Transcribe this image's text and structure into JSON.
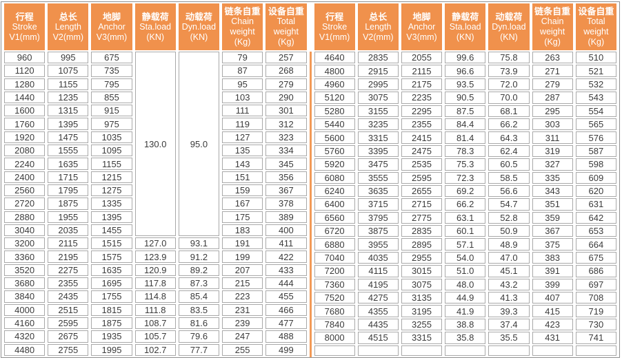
{
  "colors": {
    "header_bg": "#F0914C",
    "header_text": "#FFFFFF",
    "divider": "#F29A57",
    "cell_border": "#A8A8A8",
    "outer_border": "#8E8E8E",
    "cell_text": "#3A3A3A"
  },
  "columns": [
    {
      "zh": "行程",
      "en": "Stroke",
      "unit": "V1(mm)"
    },
    {
      "zh": "总长",
      "en": "Length",
      "unit": "V2(mm)"
    },
    {
      "zh": "地脚",
      "en": "Anchor",
      "unit": "V3(mm)"
    },
    {
      "zh": "静载荷",
      "en": "Sta.load",
      "unit": "(KN)"
    },
    {
      "zh": "动载荷",
      "en": "Dyn.load",
      "unit": "(KN)"
    },
    {
      "zh": "链条自重",
      "en": "Chain weight",
      "unit": "(Kg)"
    },
    {
      "zh": "设备自重",
      "en": "Total weight",
      "unit": "(Kg)"
    }
  ],
  "left_table": {
    "merged": {
      "sta_load": "130.0",
      "dyn_load": "95.0",
      "row_span": 14
    },
    "rows": [
      [
        "960",
        "995",
        "675",
        null,
        null,
        "79",
        "257"
      ],
      [
        "1120",
        "1075",
        "735",
        null,
        null,
        "87",
        "268"
      ],
      [
        "1280",
        "1155",
        "795",
        null,
        null,
        "95",
        "279"
      ],
      [
        "1440",
        "1235",
        "855",
        null,
        null,
        "103",
        "290"
      ],
      [
        "1600",
        "1315",
        "915",
        null,
        null,
        "111",
        "301"
      ],
      [
        "1760",
        "1395",
        "975",
        null,
        null,
        "119",
        "312"
      ],
      [
        "1920",
        "1475",
        "1035",
        null,
        null,
        "127",
        "323"
      ],
      [
        "2080",
        "1555",
        "1095",
        null,
        null,
        "135",
        "334"
      ],
      [
        "2240",
        "1635",
        "1155",
        null,
        null,
        "143",
        "345"
      ],
      [
        "2400",
        "1715",
        "1215",
        null,
        null,
        "151",
        "356"
      ],
      [
        "2560",
        "1795",
        "1275",
        null,
        null,
        "159",
        "367"
      ],
      [
        "2720",
        "1875",
        "1335",
        null,
        null,
        "167",
        "378"
      ],
      [
        "2880",
        "1955",
        "1395",
        null,
        null,
        "175",
        "389"
      ],
      [
        "3040",
        "2035",
        "1455",
        null,
        null,
        "183",
        "400"
      ],
      [
        "3200",
        "2115",
        "1515",
        "127.0",
        "93.1",
        "191",
        "411"
      ],
      [
        "3360",
        "2195",
        "1575",
        "123.9",
        "91.2",
        "199",
        "422"
      ],
      [
        "3520",
        "2275",
        "1635",
        "120.9",
        "89.2",
        "207",
        "433"
      ],
      [
        "3680",
        "2355",
        "1695",
        "117.8",
        "87.3",
        "215",
        "444"
      ],
      [
        "3840",
        "2435",
        "1755",
        "114.8",
        "85.4",
        "223",
        "455"
      ],
      [
        "4000",
        "2515",
        "1815",
        "111.8",
        "83.5",
        "231",
        "466"
      ],
      [
        "4160",
        "2595",
        "1875",
        "108.7",
        "81.6",
        "239",
        "477"
      ],
      [
        "4320",
        "2675",
        "1935",
        "105.7",
        "79.6",
        "247",
        "488"
      ],
      [
        "4480",
        "2755",
        "1995",
        "102.7",
        "77.7",
        "255",
        "499"
      ]
    ]
  },
  "right_table": {
    "merged": null,
    "rows": [
      [
        "4640",
        "2835",
        "2055",
        "99.6",
        "75.8",
        "263",
        "510"
      ],
      [
        "4800",
        "2915",
        "2115",
        "96.6",
        "73.9",
        "271",
        "521"
      ],
      [
        "4960",
        "2995",
        "2175",
        "93.5",
        "72.0",
        "279",
        "532"
      ],
      [
        "5120",
        "3075",
        "2235",
        "90.5",
        "70.0",
        "287",
        "543"
      ],
      [
        "5280",
        "3155",
        "2295",
        "87.5",
        "68.1",
        "295",
        "554"
      ],
      [
        "5440",
        "3235",
        "2355",
        "84.4",
        "66.2",
        "303",
        "565"
      ],
      [
        "5600",
        "3315",
        "2415",
        "81.4",
        "64.3",
        "311",
        "576"
      ],
      [
        "5760",
        "3395",
        "2475",
        "78.3",
        "62.4",
        "319",
        "587"
      ],
      [
        "5920",
        "3475",
        "2535",
        "75.3",
        "60.5",
        "327",
        "598"
      ],
      [
        "6080",
        "3555",
        "2595",
        "72.3",
        "58.5",
        "335",
        "609"
      ],
      [
        "6240",
        "3635",
        "2655",
        "69.2",
        "56.6",
        "343",
        "620"
      ],
      [
        "6400",
        "3715",
        "2715",
        "66.2",
        "54.7",
        "351",
        "631"
      ],
      [
        "6560",
        "3795",
        "2775",
        "63.1",
        "52.8",
        "359",
        "642"
      ],
      [
        "6720",
        "3875",
        "2835",
        "60.1",
        "50.9",
        "367",
        "653"
      ],
      [
        "6880",
        "3955",
        "2895",
        "57.1",
        "48.9",
        "375",
        "664"
      ],
      [
        "7040",
        "4035",
        "2955",
        "54.0",
        "47.0",
        "383",
        "675"
      ],
      [
        "7200",
        "4115",
        "3015",
        "51.0",
        "45.1",
        "391",
        "686"
      ],
      [
        "7360",
        "4195",
        "3075",
        "48.0",
        "43.2",
        "399",
        "697"
      ],
      [
        "7520",
        "4275",
        "3135",
        "44.9",
        "41.3",
        "407",
        "708"
      ],
      [
        "7680",
        "4355",
        "3195",
        "41.9",
        "39.3",
        "415",
        "719"
      ],
      [
        "7840",
        "4435",
        "3255",
        "38.8",
        "37.4",
        "423",
        "730"
      ],
      [
        "8000",
        "4515",
        "3315",
        "35.8",
        "35.5",
        "431",
        "741"
      ],
      [
        "",
        "",
        "",
        "",
        "",
        "",
        ""
      ]
    ]
  }
}
